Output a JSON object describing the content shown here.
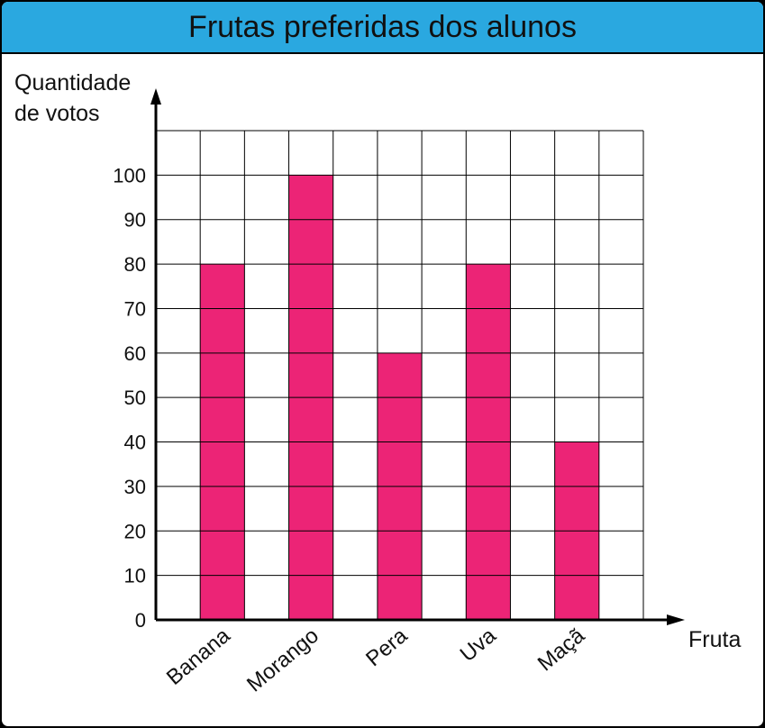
{
  "title": "Frutas preferidas dos alunos",
  "colors": {
    "title_bar": "#2aa8e0",
    "bar": "#ec2476",
    "grid": "#000000"
  },
  "chart_data": {
    "type": "bar",
    "title": "Frutas preferidas dos alunos",
    "ylabel_line1": "Quantidade",
    "ylabel_line2": "de votos",
    "xlabel": "Fruta",
    "categories": [
      "Banana",
      "Morango",
      "Pera",
      "Uva",
      "Maçã"
    ],
    "values": [
      80,
      100,
      60,
      80,
      40
    ],
    "yticks": [
      "0",
      "10",
      "20",
      "30",
      "40",
      "50",
      "60",
      "70",
      "80",
      "90",
      "100"
    ],
    "ylim": [
      0,
      110
    ],
    "grid": true,
    "legend": "none"
  }
}
